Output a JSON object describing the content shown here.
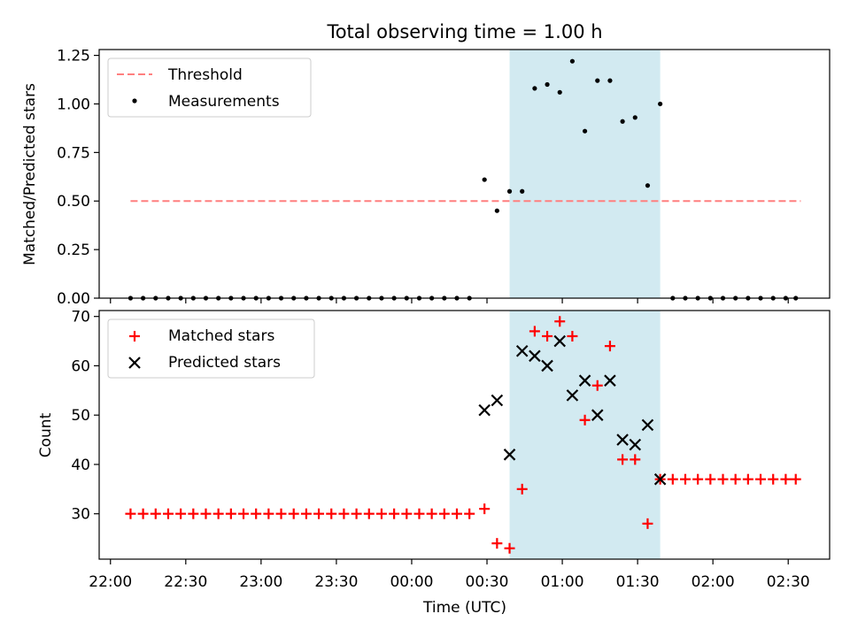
{
  "chart_data": {
    "title": "Total observing time = 1.00 h",
    "xlabel": "Time (UTC)",
    "x_ticks": [
      "22:00",
      "22:30",
      "23:00",
      "23:30",
      "00:00",
      "00:30",
      "01:00",
      "01:30",
      "02:00",
      "02:30"
    ],
    "x_tick_minutes": [
      0,
      30,
      60,
      90,
      120,
      150,
      180,
      210,
      240,
      270
    ],
    "x_range_minutes": [
      -4.5,
      286.5
    ],
    "observing_window": {
      "start": "00:39",
      "end": "01:39",
      "color": "#add8e6"
    },
    "panels": [
      {
        "type": "scatter",
        "ylabel": "Matched/Predicted stars",
        "ylim": [
          0,
          1.28
        ],
        "yticks": [
          "0.00",
          "0.25",
          "0.50",
          "0.75",
          "1.00",
          "1.25"
        ],
        "ytick_values": [
          0,
          0.25,
          0.5,
          0.75,
          1.0,
          1.25
        ],
        "legend_position": "top-left",
        "series": [
          {
            "name": "Threshold",
            "kind": "dashed-line",
            "color": "#ff7f7f",
            "x": [
              "22:08",
              "02:35"
            ],
            "y": [
              0.5,
              0.5
            ]
          },
          {
            "name": "Measurements",
            "kind": "dots",
            "color": "#000000",
            "x": [
              "22:08",
              "22:13",
              "22:18",
              "22:23",
              "22:28",
              "22:33",
              "22:38",
              "22:43",
              "22:48",
              "22:53",
              "22:58",
              "23:03",
              "23:08",
              "23:13",
              "23:18",
              "23:23",
              "23:28",
              "23:33",
              "23:38",
              "23:43",
              "23:48",
              "23:53",
              "23:58",
              "00:03",
              "00:08",
              "00:13",
              "00:18",
              "00:23",
              "00:29",
              "00:34",
              "00:39",
              "00:44",
              "00:49",
              "00:54",
              "00:59",
              "01:04",
              "01:09",
              "01:14",
              "01:19",
              "01:24",
              "01:29",
              "01:34",
              "01:39",
              "01:44",
              "01:49",
              "01:54",
              "01:59",
              "02:04",
              "02:09",
              "02:14",
              "02:19",
              "02:24",
              "02:29",
              "02:33"
            ],
            "y": [
              0,
              0,
              0,
              0,
              0,
              0,
              0,
              0,
              0,
              0,
              0,
              0,
              0,
              0,
              0,
              0,
              0,
              0,
              0,
              0,
              0,
              0,
              0,
              0,
              0,
              0,
              0,
              0,
              0.61,
              0.45,
              0.55,
              0.55,
              1.08,
              1.1,
              1.06,
              1.22,
              0.86,
              1.12,
              1.12,
              0.91,
              0.93,
              0.58,
              1.0,
              0,
              0,
              0,
              0,
              0,
              0,
              0,
              0,
              0,
              0,
              0
            ]
          }
        ]
      },
      {
        "type": "scatter",
        "ylabel": "Count",
        "ylim": [
          20.8,
          71.2
        ],
        "yticks": [
          "30",
          "40",
          "50",
          "60",
          "70"
        ],
        "ytick_values": [
          30,
          40,
          50,
          60,
          70
        ],
        "legend_position": "top-left",
        "series": [
          {
            "name": "Matched stars",
            "marker": "plus",
            "color": "#ff0000",
            "x": [
              "22:08",
              "22:13",
              "22:18",
              "22:23",
              "22:28",
              "22:33",
              "22:38",
              "22:43",
              "22:48",
              "22:53",
              "22:58",
              "23:03",
              "23:08",
              "23:13",
              "23:18",
              "23:23",
              "23:28",
              "23:33",
              "23:38",
              "23:43",
              "23:48",
              "23:53",
              "23:58",
              "00:03",
              "00:08",
              "00:13",
              "00:18",
              "00:23",
              "00:29",
              "00:34",
              "00:39",
              "00:44",
              "00:49",
              "00:54",
              "00:59",
              "01:04",
              "01:09",
              "01:14",
              "01:19",
              "01:24",
              "01:29",
              "01:34",
              "01:39",
              "01:44",
              "01:49",
              "01:54",
              "01:59",
              "02:04",
              "02:09",
              "02:14",
              "02:19",
              "02:24",
              "02:29",
              "02:33"
            ],
            "y": [
              30,
              30,
              30,
              30,
              30,
              30,
              30,
              30,
              30,
              30,
              30,
              30,
              30,
              30,
              30,
              30,
              30,
              30,
              30,
              30,
              30,
              30,
              30,
              30,
              30,
              30,
              30,
              30,
              31,
              24,
              23,
              35,
              67,
              66,
              69,
              66,
              49,
              56,
              64,
              41,
              41,
              28,
              37,
              37,
              37,
              37,
              37,
              37,
              37,
              37,
              37,
              37,
              37,
              37
            ]
          },
          {
            "name": "Predicted stars",
            "marker": "x",
            "color": "#000000",
            "x": [
              "00:29",
              "00:34",
              "00:39",
              "00:44",
              "00:49",
              "00:54",
              "00:59",
              "01:04",
              "01:09",
              "01:14",
              "01:19",
              "01:24",
              "01:29",
              "01:34",
              "01:39"
            ],
            "y": [
              51,
              53,
              42,
              63,
              62,
              60,
              65,
              54,
              57,
              50,
              57,
              45,
              44,
              48,
              37
            ]
          }
        ]
      }
    ]
  }
}
